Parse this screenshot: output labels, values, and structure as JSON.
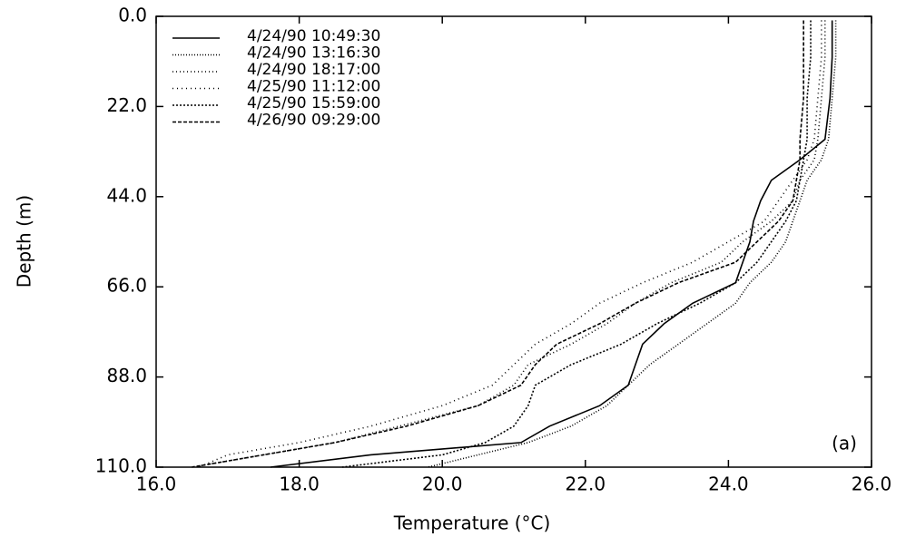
{
  "chart_data": {
    "type": "line",
    "x_label": "Temperature (°C)",
    "y_label": "Depth (m)",
    "annotation": "(a)",
    "xlim": [
      16,
      26
    ],
    "xticks": [
      {
        "value": 16,
        "label": "16.0"
      },
      {
        "value": 18,
        "label": "18.0"
      },
      {
        "value": 20,
        "label": "20.0"
      },
      {
        "value": 22,
        "label": "22.0"
      },
      {
        "value": 24,
        "label": "24.0"
      },
      {
        "value": 26,
        "label": "26.0"
      }
    ],
    "ylim": [
      0,
      110
    ],
    "y_inverted": true,
    "yticks": [
      {
        "value": 0,
        "label": "0.0"
      },
      {
        "value": 22,
        "label": "22.0"
      },
      {
        "value": 44,
        "label": "44.0"
      },
      {
        "value": 66,
        "label": "66.0"
      },
      {
        "value": 88,
        "label": "88.0"
      },
      {
        "value": 110,
        "label": "110.0"
      }
    ],
    "y": [
      1,
      10,
      20,
      30,
      35,
      40,
      45,
      50,
      55,
      60,
      65,
      70,
      75,
      80,
      85,
      90,
      95,
      100,
      104,
      107,
      110
    ],
    "series": [
      {
        "name": "4/24/90 10:49:30",
        "color": "#000000",
        "dash": "none",
        "values": [
          25.45,
          25.45,
          25.42,
          25.35,
          25.0,
          24.6,
          24.45,
          24.35,
          24.3,
          24.2,
          24.1,
          23.5,
          23.1,
          22.8,
          22.7,
          22.6,
          22.2,
          21.5,
          21.1,
          19.0,
          17.6
        ]
      },
      {
        "name": "4/24/90 13:16:30",
        "color": "#000000",
        "dash": "1,2",
        "values": [
          25.5,
          25.5,
          25.45,
          25.4,
          25.3,
          25.1,
          25.0,
          24.9,
          24.8,
          24.6,
          24.3,
          24.1,
          23.7,
          23.3,
          22.9,
          22.6,
          22.3,
          21.8,
          21.2,
          20.5,
          19.8
        ]
      },
      {
        "name": "4/24/90 18:17:00",
        "color": "#000000",
        "dash": "1,3",
        "values": [
          25.35,
          25.35,
          25.3,
          25.25,
          25.2,
          25.0,
          24.9,
          24.6,
          24.2,
          23.9,
          23.2,
          22.7,
          22.3,
          21.8,
          21.2,
          21.0,
          20.5,
          19.4,
          18.5,
          17.5,
          16.5
        ]
      },
      {
        "name": "4/25/90 11:12:00",
        "color": "#000000",
        "dash": "1,4",
        "values": [
          25.3,
          25.3,
          25.25,
          25.2,
          25.1,
          24.9,
          24.7,
          24.5,
          24.0,
          23.5,
          22.8,
          22.2,
          21.8,
          21.3,
          21.0,
          20.7,
          20.0,
          19.0,
          18.0,
          17.0,
          16.6
        ]
      },
      {
        "name": "4/25/90 15:59:00",
        "color": "#000000",
        "dash": "2,2",
        "values": [
          25.15,
          25.15,
          25.1,
          25.1,
          25.05,
          25.0,
          24.95,
          24.8,
          24.6,
          24.4,
          24.1,
          23.6,
          23.0,
          22.5,
          21.8,
          21.3,
          21.2,
          21.0,
          20.6,
          20.0,
          18.6
        ]
      },
      {
        "name": "4/26/90 09:29:00",
        "color": "#000000",
        "dash": "4,2",
        "values": [
          25.05,
          25.05,
          25.05,
          25.0,
          25.0,
          24.95,
          24.9,
          24.7,
          24.4,
          24.1,
          23.3,
          22.7,
          22.2,
          21.6,
          21.3,
          21.1,
          20.5,
          19.5,
          18.5,
          17.5,
          16.5
        ]
      }
    ]
  }
}
